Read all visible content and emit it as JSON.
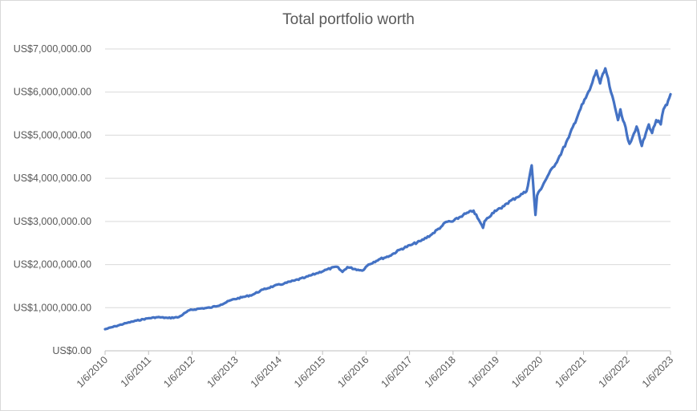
{
  "chart_data": {
    "type": "line",
    "title": "Total portfolio worth",
    "xlabel": "",
    "ylabel": "",
    "ylim": [
      0,
      7000000
    ],
    "y_ticks": [
      0,
      1000000,
      2000000,
      3000000,
      4000000,
      5000000,
      6000000,
      7000000
    ],
    "y_tick_labels": [
      "US$0.00",
      "US$1,000,000.00",
      "US$2,000,000.00",
      "US$3,000,000.00",
      "US$4,000,000.00",
      "US$5,000,000.00",
      "US$6,000,000.00",
      "US$7,000,000.00"
    ],
    "x_tick_labels": [
      "1/6/2010",
      "1/6/2011",
      "1/6/2012",
      "1/6/2013",
      "1/6/2014",
      "1/6/2015",
      "1/6/2016",
      "1/6/2017",
      "1/6/2018",
      "1/6/2019",
      "1/6/2020",
      "1/6/2021",
      "1/6/2022",
      "1/6/2023"
    ],
    "grid": true,
    "legend": "none",
    "series_color": "#4472c4",
    "series": [
      {
        "x": [
          "2010-01-06",
          "2010-04-06",
          "2010-07-06",
          "2010-10-06",
          "2011-01-06",
          "2011-04-06",
          "2011-07-06",
          "2011-10-06",
          "2012-01-06",
          "2012-04-06",
          "2012-07-06",
          "2012-10-06",
          "2013-01-06",
          "2013-04-06",
          "2013-07-06",
          "2013-10-06",
          "2014-01-06",
          "2014-04-06",
          "2014-07-06",
          "2014-10-06",
          "2015-01-06",
          "2015-04-06",
          "2015-07-06",
          "2015-08-25",
          "2015-10-06",
          "2016-01-06",
          "2016-02-11",
          "2016-04-06",
          "2016-07-06",
          "2016-10-06",
          "2017-01-06",
          "2017-04-06",
          "2017-07-06",
          "2017-10-06",
          "2018-01-06",
          "2018-02-09",
          "2018-04-06",
          "2018-07-06",
          "2018-10-03",
          "2018-12-24",
          "2019-01-06",
          "2019-04-06",
          "2019-06-03",
          "2019-07-06",
          "2019-10-06",
          "2020-01-06",
          "2020-02-19",
          "2020-03-23",
          "2020-04-06",
          "2020-07-06",
          "2020-10-06",
          "2021-01-06",
          "2021-04-06",
          "2021-07-06",
          "2021-09-02",
          "2021-10-04",
          "2021-11-18",
          "2022-01-06",
          "2022-03-08",
          "2022-03-29",
          "2022-06-16",
          "2022-08-16",
          "2022-09-30",
          "2022-11-30",
          "2022-12-28",
          "2023-02-02",
          "2023-03-13",
          "2023-04-06",
          "2023-05-06",
          "2023-06-06"
        ],
        "values": [
          500000,
          570000,
          640000,
          700000,
          750000,
          780000,
          760000,
          780000,
          940000,
          980000,
          1000000,
          1070000,
          1180000,
          1240000,
          1300000,
          1420000,
          1500000,
          1560000,
          1630000,
          1700000,
          1790000,
          1880000,
          1950000,
          1830000,
          1940000,
          1880000,
          1860000,
          2000000,
          2120000,
          2200000,
          2350000,
          2450000,
          2550000,
          2700000,
          2900000,
          2990000,
          3000000,
          3150000,
          3250000,
          2850000,
          3000000,
          3250000,
          3300000,
          3400000,
          3550000,
          3700000,
          4300000,
          3150000,
          3600000,
          4050000,
          4450000,
          4950000,
          5550000,
          6050000,
          6500000,
          6200000,
          6550000,
          6000000,
          5350000,
          5600000,
          4800000,
          5200000,
          4750000,
          5250000,
          5050000,
          5350000,
          5250000,
          5600000,
          5700000,
          5950000
        ]
      }
    ]
  }
}
